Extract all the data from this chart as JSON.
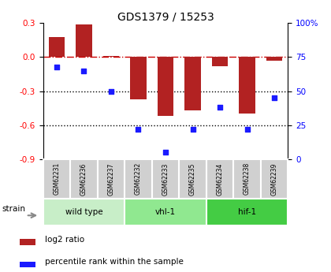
{
  "title": "GDS1379 / 15253",
  "samples": [
    "GSM62231",
    "GSM62236",
    "GSM62237",
    "GSM62232",
    "GSM62233",
    "GSM62235",
    "GSM62234",
    "GSM62238",
    "GSM62239"
  ],
  "log2_ratio": [
    0.18,
    0.285,
    0.01,
    -0.37,
    -0.52,
    -0.47,
    -0.08,
    -0.5,
    -0.03
  ],
  "percentile_rank": [
    68,
    65,
    50,
    22,
    5,
    22,
    38,
    22,
    45
  ],
  "ylim_left": [
    -0.9,
    0.3
  ],
  "ylim_right": [
    0,
    100
  ],
  "yticks_left": [
    -0.9,
    -0.6,
    -0.3,
    0.0,
    0.3
  ],
  "yticks_right": [
    0,
    25,
    50,
    75,
    100
  ],
  "ytick_labels_right": [
    "0",
    "25",
    "50",
    "75",
    "100%"
  ],
  "bar_color": "#B22222",
  "dot_color": "#1a1aff",
  "hline_color": "#CC0000",
  "dotted_line_color": "#000000",
  "groups": [
    {
      "label": "wild type",
      "start": 0,
      "end": 3,
      "color": "#c8eec8"
    },
    {
      "label": "vhl-1",
      "start": 3,
      "end": 6,
      "color": "#90e890"
    },
    {
      "label": "hif-1",
      "start": 6,
      "end": 9,
      "color": "#44cc44"
    }
  ],
  "strain_label": "strain",
  "legend_items": [
    {
      "label": "log2 ratio",
      "color": "#B22222"
    },
    {
      "label": "percentile rank within the sample",
      "color": "#1a1aff"
    }
  ],
  "bg_color": "#ffffff",
  "sample_box_color": "#d0d0d0",
  "sample_box_edge": "#ffffff"
}
